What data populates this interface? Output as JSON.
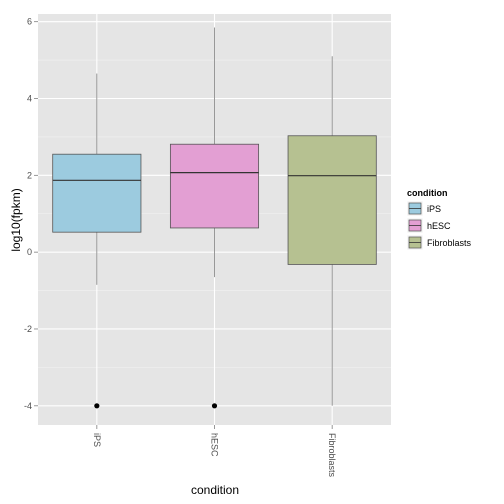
{
  "chart_data": {
    "type": "box",
    "xlabel": "condition",
    "ylabel": "log10(fpkm)",
    "ylim": [
      -4.5,
      6.2
    ],
    "y_ticks": [
      -4,
      -2,
      0,
      2,
      4,
      6
    ],
    "y_tick_labels": [
      "-4",
      "-2",
      "0",
      "2",
      "4",
      "6"
    ],
    "categories": [
      "iPS",
      "hESC",
      "Fibroblasts"
    ],
    "grid": true,
    "background": "#e5e5e5",
    "legend": {
      "title": "condition",
      "placement": "right",
      "entries": [
        "iPS",
        "hESC",
        "Fibroblasts"
      ]
    },
    "boxes": [
      {
        "name": "iPS",
        "whisker_low": -0.85,
        "q1": 0.52,
        "median": 1.87,
        "q3": 2.55,
        "whisker_high": 4.65,
        "outliers": [
          -4.0
        ],
        "color": "#9ccbdf"
      },
      {
        "name": "hESC",
        "whisker_low": -0.65,
        "q1": 0.63,
        "median": 2.07,
        "q3": 2.81,
        "whisker_high": 5.85,
        "outliers": [
          -4.0
        ],
        "color": "#e39fd3"
      },
      {
        "name": "Fibroblasts",
        "whisker_low": -4.0,
        "q1": -0.32,
        "median": 1.99,
        "q3": 3.03,
        "whisker_high": 5.1,
        "outliers": [],
        "color": "#b6c191"
      }
    ]
  }
}
